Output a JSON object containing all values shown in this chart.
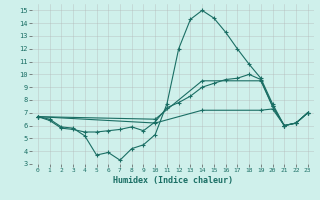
{
  "xlabel": "Humidex (Indice chaleur)",
  "bg_color": "#cff0eb",
  "grid_color": "#b0b0b0",
  "line_color": "#1a6e64",
  "xlim": [
    -0.5,
    23.5
  ],
  "ylim": [
    3,
    15.5
  ],
  "xticks": [
    0,
    1,
    2,
    3,
    4,
    5,
    6,
    7,
    8,
    9,
    10,
    11,
    12,
    13,
    14,
    15,
    16,
    17,
    18,
    19,
    20,
    21,
    22,
    23
  ],
  "yticks": [
    3,
    4,
    5,
    6,
    7,
    8,
    9,
    10,
    11,
    12,
    13,
    14,
    15
  ],
  "lines": [
    [
      0,
      6.7,
      1,
      6.5,
      2,
      5.9,
      3,
      5.8,
      4,
      5.2,
      5,
      3.7,
      6,
      3.9,
      7,
      3.3,
      8,
      4.2,
      9,
      4.5,
      10,
      5.3,
      11,
      7.7,
      12,
      12.0,
      13,
      14.3,
      14,
      15.0,
      15,
      14.4,
      16,
      13.3,
      17,
      12.0,
      18,
      10.8,
      19,
      9.7,
      20,
      7.7,
      21,
      6.0,
      22,
      6.2,
      23,
      7.0
    ],
    [
      0,
      6.7,
      1,
      6.4,
      2,
      5.8,
      3,
      5.7,
      4,
      5.5,
      5,
      5.5,
      6,
      5.6,
      7,
      5.7,
      8,
      5.9,
      9,
      5.6,
      10,
      6.3,
      11,
      7.4,
      12,
      7.8,
      13,
      8.3,
      14,
      9.0,
      15,
      9.3,
      16,
      9.6,
      17,
      9.7,
      18,
      10.0,
      19,
      9.6,
      20,
      7.5,
      21,
      6.0,
      22,
      6.2,
      23,
      7.0
    ],
    [
      0,
      6.7,
      10,
      6.5,
      14,
      9.5,
      19,
      9.5,
      20,
      7.5,
      21,
      6.0,
      22,
      6.2,
      23,
      7.0
    ],
    [
      0,
      6.7,
      10,
      6.2,
      14,
      7.2,
      19,
      7.2,
      20,
      7.3,
      21,
      6.0,
      22,
      6.2,
      23,
      7.0
    ]
  ]
}
